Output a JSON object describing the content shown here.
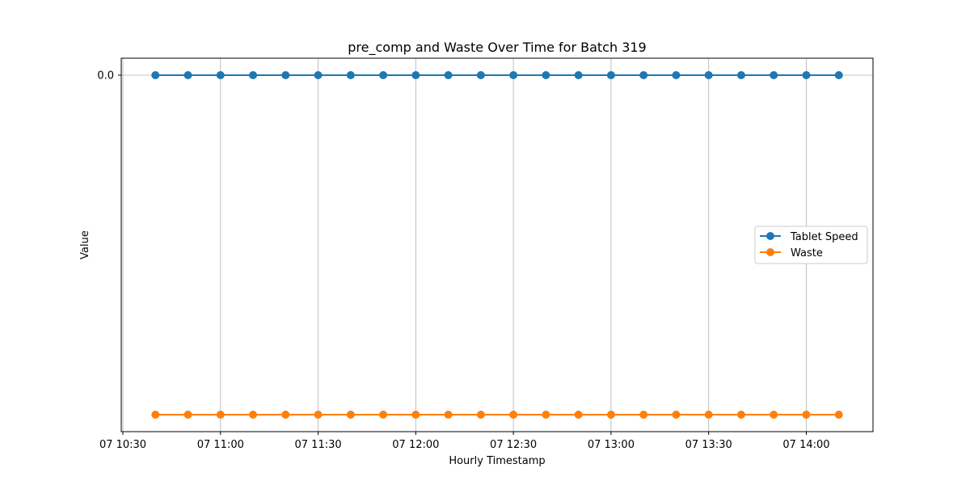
{
  "chart_data": {
    "type": "line",
    "title": "pre_comp and Waste Over Time for Batch 319",
    "xlabel": "Hourly Timestamp",
    "ylabel": "Value",
    "x": [
      "07 10:40",
      "07 10:50",
      "07 11:00",
      "07 11:10",
      "07 11:20",
      "07 11:30",
      "07 11:40",
      "07 11:50",
      "07 12:00",
      "07 12:10",
      "07 12:20",
      "07 12:30",
      "07 12:40",
      "07 12:50",
      "07 13:00",
      "07 13:10",
      "07 13:20",
      "07 13:30",
      "07 13:40",
      "07 13:50",
      "07 14:00",
      "07 14:10"
    ],
    "x_ticks": [
      "07 10:30",
      "07 11:00",
      "07 11:30",
      "07 12:00",
      "07 12:30",
      "07 13:00",
      "07 13:30",
      "07 14:00"
    ],
    "y_ticks": [
      "0.0"
    ],
    "series": [
      {
        "name": "Tablet Speed",
        "color": "#1f77b4",
        "values": [
          0,
          0,
          0,
          0,
          0,
          0,
          0,
          0,
          0,
          0,
          0,
          0,
          0,
          0,
          0,
          0,
          0,
          0,
          0,
          0,
          0,
          0
        ]
      },
      {
        "name": "Waste",
        "color": "#ff7f0e",
        "values": [
          -1,
          -1,
          -1,
          -1,
          -1,
          -1,
          -1,
          -1,
          -1,
          -1,
          -1,
          -1,
          -1,
          -1,
          -1,
          -1,
          -1,
          -1,
          -1,
          -1,
          -1,
          -1
        ]
      }
    ],
    "ylim": [
      -1.05,
      0.05
    ],
    "grid": "vertical",
    "legend_position": "center-right"
  }
}
